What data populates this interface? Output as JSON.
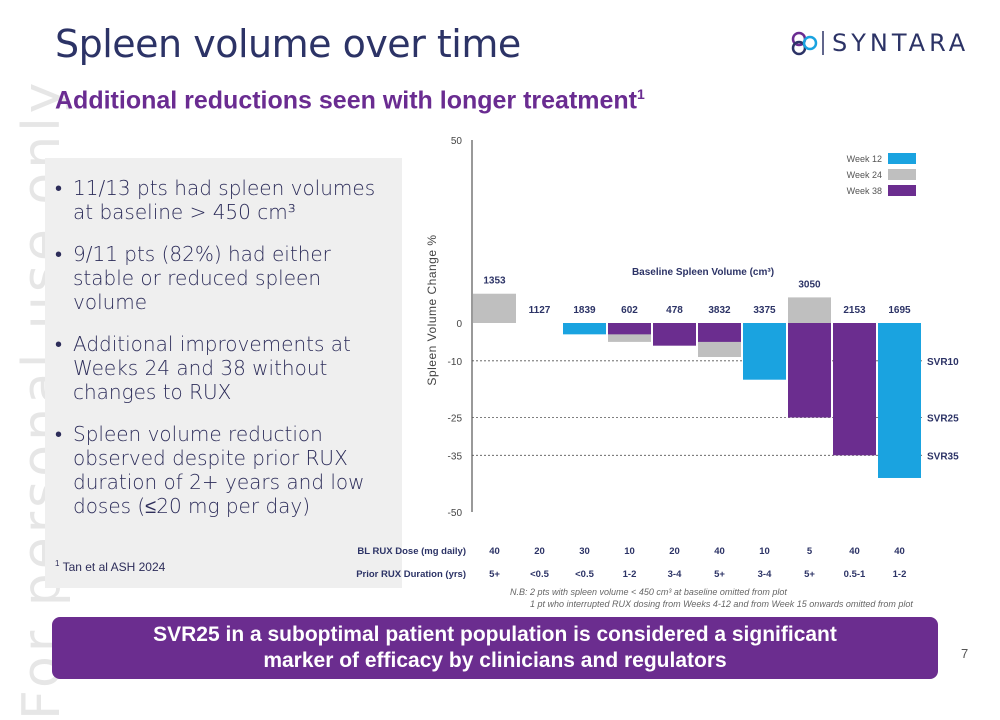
{
  "watermark": "For personal use only",
  "header": {
    "title": "Spleen volume over time",
    "subtitle": "Additional reductions seen with longer treatment",
    "subtitle_sup": "1",
    "logo_text": "SYNTARA"
  },
  "panel": {
    "bullets": [
      "11/13 pts had spleen volumes at baseline > 450 cm³",
      "9/11 pts (82%) had either stable or reduced spleen volume",
      "Additional improvements at Weeks 24 and 38 without changes to RUX",
      "Spleen volume reduction observed despite prior RUX duration of 2+ years and low doses (≤20 mg per day)"
    ],
    "footnote_sup": "1",
    "footnote": "Tan et al ASH 2024"
  },
  "banner": {
    "line1": "SVR25 in a suboptimal patient population is considered a significant",
    "line2": "marker of efficacy by clinicians and regulators"
  },
  "page_number": "7",
  "colors": {
    "week12": "#1aa3e0",
    "week24": "#bfbfbf",
    "week38": "#6b2d8f",
    "title": "#2c3366",
    "accent": "#6a2c91"
  },
  "chart_data": {
    "type": "bar",
    "ylabel": "Spleen Volume Change %",
    "ylim": [
      -50,
      50
    ],
    "yticks": [
      50,
      0,
      -10,
      -25,
      -35,
      -50
    ],
    "baseline_label": "Baseline Spleen Volume (cm³)",
    "legend": [
      "Week 12",
      "Week 24",
      "Week 38"
    ],
    "reference_lines": [
      {
        "value": -10,
        "label": "SVR10"
      },
      {
        "value": -25,
        "label": "SVR25"
      },
      {
        "value": -35,
        "label": "SVR35"
      }
    ],
    "patients": [
      {
        "baseline": "1353",
        "dose": "40",
        "duration": "5+",
        "w12": null,
        "w24": 8,
        "w38": null
      },
      {
        "baseline": "1127",
        "dose": "20",
        "duration": "<0.5",
        "w12": null,
        "w24": null,
        "w38": null
      },
      {
        "baseline": "1839",
        "dose": "30",
        "duration": "<0.5",
        "w12": -3,
        "w24": null,
        "w38": null
      },
      {
        "baseline": "602",
        "dose": "10",
        "duration": "1-2",
        "w12": null,
        "w24": -5,
        "w38": -3
      },
      {
        "baseline": "478",
        "dose": "20",
        "duration": "3-4",
        "w12": null,
        "w24": null,
        "w38": -6
      },
      {
        "baseline": "3832",
        "dose": "40",
        "duration": "5+",
        "w12": null,
        "w24": -9,
        "w38": -5
      },
      {
        "baseline": "3375",
        "dose": "10",
        "duration": "3-4",
        "w12": -15,
        "w24": null,
        "w38": null
      },
      {
        "baseline": "3050",
        "dose": "5",
        "duration": "5+",
        "w12": null,
        "w24": 7,
        "w38": -25
      },
      {
        "baseline": "2153",
        "dose": "40",
        "duration": "0.5-1",
        "w12": null,
        "w24": -29,
        "w38": -35
      },
      {
        "baseline": "1695",
        "dose": "40",
        "duration": "1-2",
        "w12": -41,
        "w24": null,
        "w38": null
      }
    ],
    "row_labels": {
      "dose": "BL RUX Dose (mg daily)",
      "duration": "Prior RUX Duration (yrs)"
    },
    "notes": [
      "N.B:  2 pts with spleen volume < 450 cm³ at baseline omitted from plot",
      "1 pt who interrupted RUX dosing from Weeks 4-12 and from Week 15 onwards omitted from plot"
    ]
  }
}
